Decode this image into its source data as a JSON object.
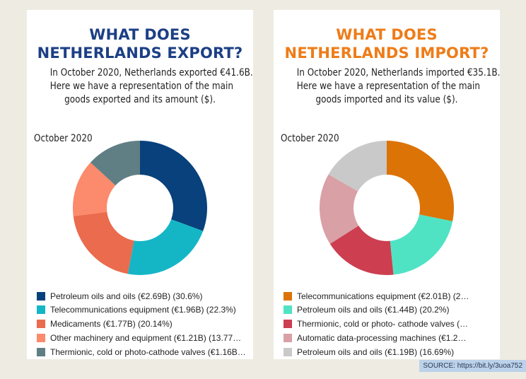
{
  "chart_data": [
    {
      "type": "donut",
      "title": [
        "WHAT DOES",
        "NETHERLANDS EXPORT?"
      ],
      "title_color": "#1c3f85",
      "description": [
        "In October 2020, Netherlands exported €41.6B.",
        "Here we have a representation of the main",
        "goods exported and its amount ($)."
      ],
      "period": "October 2020",
      "legend_position": "bottom",
      "categories": [
        "Petroleum oils and oils",
        "Telecommunications equipment",
        "Medicaments",
        "Other machinery and equipment",
        "Thermionic, cold or photo-cathode valves"
      ],
      "values": [
        30.6,
        22.3,
        20.14,
        13.77,
        13.19
      ],
      "colors": [
        "#08417c",
        "#14b6c6",
        "#ea6b4d",
        "#fc8a6c",
        "#5f7f84"
      ],
      "legend": [
        "Petroleum oils and oils (€2.69B) (30.6%)",
        "Telecommunications equipment (€1.96B) (22.3%)",
        "Medicaments (€1.77B) (20.14%)",
        "Other machinery and equipment (€1.21B) (13.77…",
        "Thermionic, cold or photo-cathode valves (€1.16B…"
      ]
    },
    {
      "type": "donut",
      "title": [
        "WHAT DOES",
        "NETHERLANDS IMPORT?"
      ],
      "title_color": "#ee7c18",
      "description": [
        "In October 2020, Netherlands imported €35.1B.",
        "Here we have a representation of the main",
        "goods imported and its value ($)."
      ],
      "period": "October 2020",
      "legend_position": "bottom",
      "categories": [
        "Telecommunications equipment",
        "Petroleum oils and oils",
        "Thermionic, cold or photo- cathode valves",
        "Automatic data-processing machines",
        "Petroleum oils and oils"
      ],
      "values": [
        28.2,
        20.2,
        17.6,
        17.31,
        16.69
      ],
      "colors": [
        "#dc7307",
        "#4fe3c4",
        "#cc3e50",
        "#d9a0a6",
        "#c9c9c9"
      ],
      "legend": [
        "Telecommunications equipment (€2.01B) (2…",
        "Petroleum oils and oils (€1.44B) (20.2%)",
        "Thermionic, cold or photo- cathode valves (…",
        "Automatic data-processing machines (€1.2…",
        "Petroleum oils and oils (€1.19B) (16.69%)"
      ]
    }
  ],
  "source": "SOURCE: https://bit.ly/3uoa752"
}
